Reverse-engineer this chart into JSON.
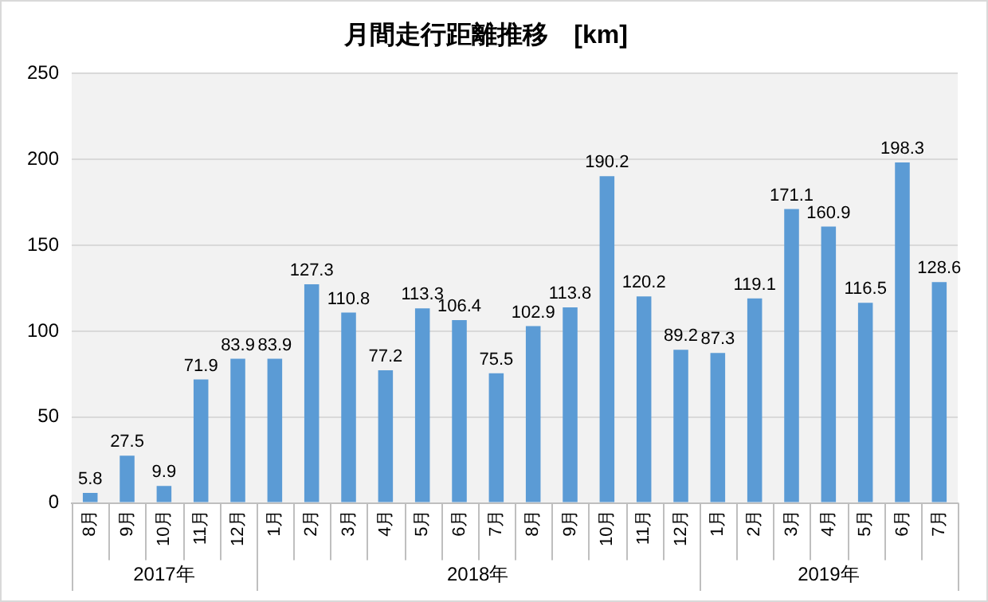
{
  "chart_data": {
    "type": "bar",
    "title": "月間走行距離推移　[km]",
    "categories": [
      "8月",
      "9月",
      "10月",
      "11月",
      "12月",
      "1月",
      "2月",
      "3月",
      "4月",
      "5月",
      "6月",
      "7月",
      "8月",
      "9月",
      "10月",
      "11月",
      "12月",
      "1月",
      "2月",
      "3月",
      "4月",
      "5月",
      "6月",
      "7月"
    ],
    "values": [
      5.8,
      27.5,
      9.9,
      71.9,
      83.9,
      83.9,
      127.3,
      110.8,
      77.2,
      113.3,
      106.4,
      75.5,
      102.9,
      113.8,
      190.2,
      120.2,
      89.2,
      87.3,
      119.1,
      171.1,
      160.9,
      116.5,
      198.3,
      128.6
    ],
    "color": "#5b9bd5",
    "annotations": [
      "2017年",
      "2018年",
      "2019年"
    ],
    "ylim": [
      0,
      250
    ],
    "yticks": [
      0,
      50,
      100,
      150,
      200,
      250
    ],
    "grid": "y",
    "data_labels": true,
    "legend": false
  }
}
